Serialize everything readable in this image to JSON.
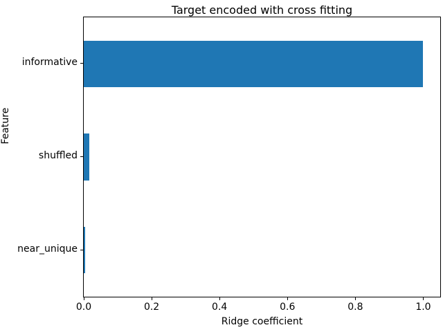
{
  "chart_data": {
    "type": "bar",
    "orientation": "horizontal",
    "title": "Target encoded with cross fitting",
    "xlabel": "Ridge coefficient",
    "ylabel": "Feature",
    "categories": [
      "informative",
      "shuffled",
      "near_unique"
    ],
    "values": [
      1.0,
      0.016,
      0.004
    ],
    "xlim": [
      0,
      1.05
    ],
    "xticks": [
      0.0,
      0.2,
      0.4,
      0.6,
      0.8,
      1.0
    ],
    "xtick_labels": [
      "0.0",
      "0.2",
      "0.4",
      "0.6",
      "0.8",
      "1.0"
    ],
    "bar_color": "#1f77b4",
    "bar_height_fraction": 0.5,
    "grid": false,
    "legend": null
  }
}
